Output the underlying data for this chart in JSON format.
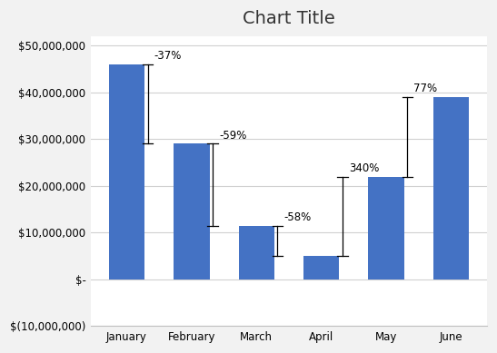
{
  "title": "Chart Title",
  "categories": [
    "January",
    "February",
    "March",
    "April",
    "May",
    "June"
  ],
  "values": [
    46000000,
    29000000,
    11500000,
    5000000,
    22000000,
    39000000
  ],
  "bar_color": "#4472C4",
  "background_color": "#f2f2f2",
  "plot_bg_color": "#ffffff",
  "ylim": [
    -10000000,
    52000000
  ],
  "yticks": [
    -10000000,
    0,
    10000000,
    20000000,
    30000000,
    40000000,
    50000000
  ],
  "ytick_labels": [
    "$(10,000,000)",
    "$-",
    "$10,000,000",
    "$20,000,000",
    "$30,000,000",
    "$40,000,000",
    "$50,000,000"
  ],
  "error_bars": [
    {
      "from_bar": 0,
      "to_bar": 1,
      "label": "-37%"
    },
    {
      "from_bar": 1,
      "to_bar": 2,
      "label": "-59%"
    },
    {
      "from_bar": 2,
      "to_bar": 3,
      "label": "-58%"
    },
    {
      "from_bar": 3,
      "to_bar": 4,
      "label": "340%"
    },
    {
      "from_bar": 4,
      "to_bar": 5,
      "label": "77%"
    }
  ],
  "title_fontsize": 14,
  "axis_fontsize": 8.5,
  "label_fontsize": 8.5,
  "grid_color": "#d0d0d0",
  "spine_color": "#c0c0c0"
}
